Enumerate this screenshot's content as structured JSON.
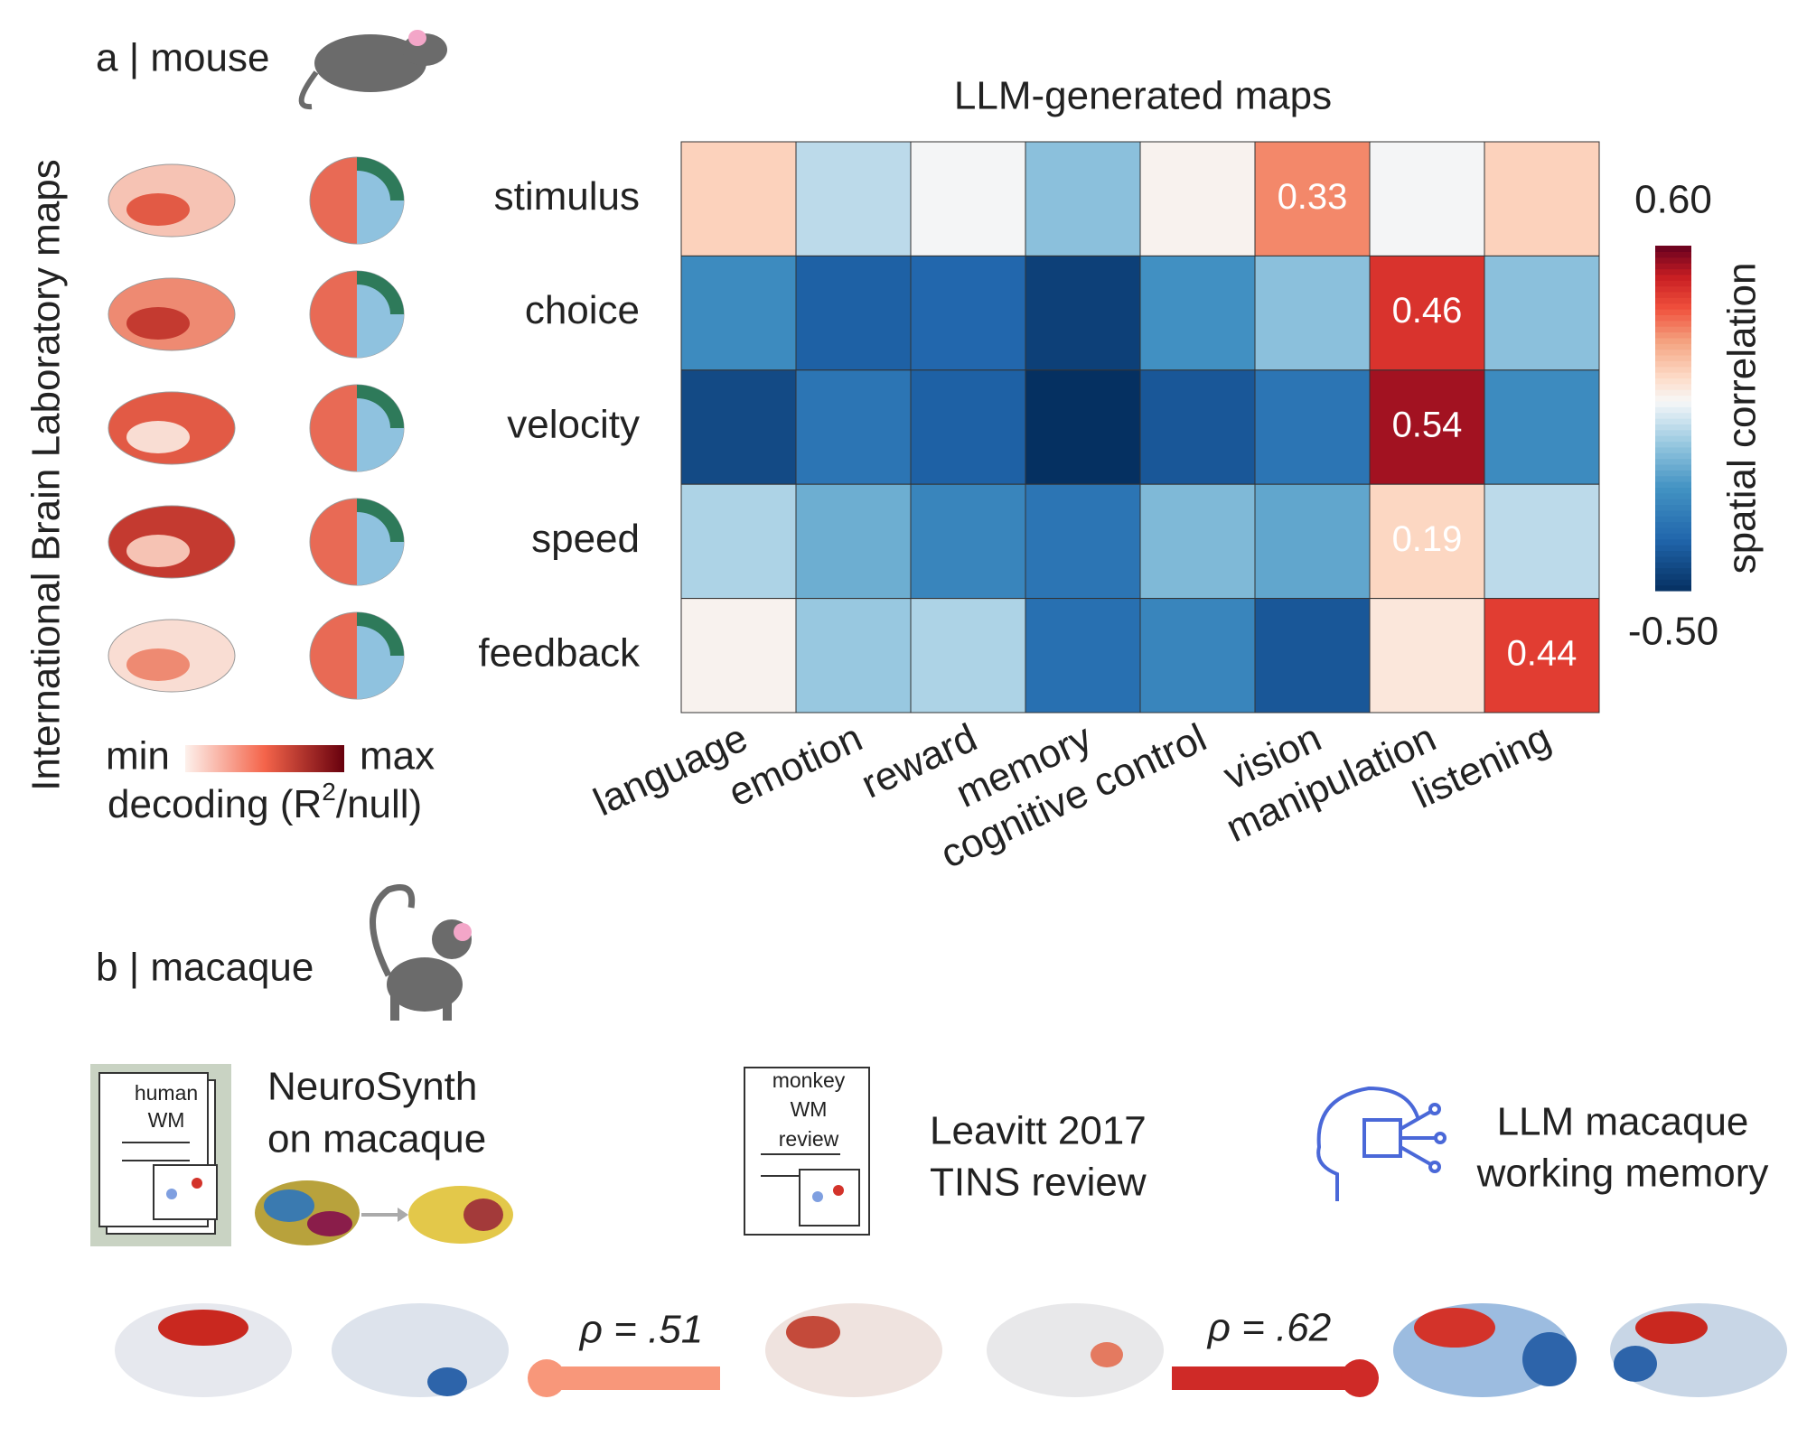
{
  "panel_a": {
    "label": "a | mouse",
    "side_title": "International Brain Laboratory maps",
    "legend": {
      "min": "min",
      "max": "max",
      "caption_parts": [
        "decoding (R",
        "2",
        "/null)"
      ]
    }
  },
  "chart_data": {
    "type": "heatmap",
    "title": "LLM-generated maps",
    "rows": [
      "stimulus",
      "choice",
      "velocity",
      "speed",
      "feedback"
    ],
    "columns": [
      "language",
      "emotion",
      "reward",
      "memory",
      "cognitive control",
      "vision",
      "manipulation",
      "listening"
    ],
    "values": [
      [
        0.2,
        0.02,
        0.1,
        -0.05,
        0.12,
        0.33,
        0.1,
        0.2
      ],
      [
        -0.2,
        -0.35,
        -0.33,
        -0.45,
        -0.18,
        -0.05,
        0.46,
        -0.05
      ],
      [
        -0.42,
        -0.28,
        -0.35,
        -0.5,
        -0.38,
        -0.28,
        0.54,
        -0.2
      ],
      [
        0.0,
        -0.1,
        -0.22,
        -0.28,
        -0.07,
        -0.12,
        0.19,
        0.02
      ],
      [
        0.12,
        -0.03,
        0.0,
        -0.3,
        -0.22,
        -0.38,
        0.15,
        0.44
      ]
    ],
    "value_labels": [
      [
        null,
        null,
        null,
        null,
        null,
        "0.33",
        null,
        null
      ],
      [
        null,
        null,
        null,
        null,
        null,
        null,
        "0.46",
        null
      ],
      [
        null,
        null,
        null,
        null,
        null,
        null,
        "0.54",
        null
      ],
      [
        null,
        null,
        null,
        null,
        null,
        null,
        "0.19",
        null
      ],
      [
        null,
        null,
        null,
        null,
        null,
        null,
        null,
        "0.44"
      ]
    ],
    "colormap": "RdBu_r",
    "clim": [
      -0.5,
      0.6
    ],
    "cticks": [
      {
        "value": 0.6,
        "label": "0.60"
      },
      {
        "value": -0.5,
        "label": "-0.50"
      }
    ],
    "colorbar_label": "spatial correlation"
  },
  "panel_b": {
    "label": "b | macaque",
    "sources": [
      {
        "icon_lines": [
          "human",
          "WM"
        ],
        "title_lines": [
          "NeuroSynth",
          "on macaque"
        ]
      },
      {
        "icon_lines": [
          "monkey",
          "WM",
          "review"
        ],
        "title_lines": [
          "Leavitt 2017",
          "TINS review"
        ]
      },
      {
        "title_lines": [
          "LLM macaque",
          "working memory"
        ]
      }
    ],
    "correlations": [
      "ρ = .51",
      "ρ = .62"
    ]
  }
}
